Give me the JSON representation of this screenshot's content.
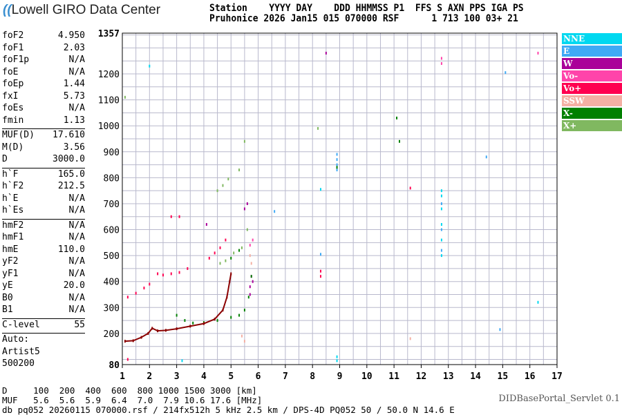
{
  "header": {
    "logo": "Lowell GIRO Data Center",
    "line1": "Station    YYYY DAY    DDD HHMMSS P1  FFS S AXN PPS IGA PS",
    "line2": "Pruhonice 2026 Jan15 015 070000 RSF      1 713 100 03+ 21"
  },
  "params": [
    [
      {
        "k": "foF2",
        "v": "4.950"
      },
      {
        "k": "foF1",
        "v": "2.03"
      },
      {
        "k": "foF1p",
        "v": "N/A"
      },
      {
        "k": "foE",
        "v": "N/A"
      },
      {
        "k": "foEp",
        "v": "1.44"
      },
      {
        "k": "fxI",
        "v": "5.73"
      },
      {
        "k": "foEs",
        "v": "N/A"
      },
      {
        "k": "fmin",
        "v": "1.13"
      }
    ],
    [
      {
        "k": "MUF(D)",
        "v": "17.610"
      },
      {
        "k": "M(D)",
        "v": "3.56"
      },
      {
        "k": "D",
        "v": "3000.0"
      }
    ],
    [
      {
        "k": "h`F",
        "v": "165.0"
      },
      {
        "k": "h`F2",
        "v": "212.5"
      },
      {
        "k": "h`E",
        "v": "N/A"
      },
      {
        "k": "h`Es",
        "v": "N/A"
      }
    ],
    [
      {
        "k": "hmF2",
        "v": "N/A"
      },
      {
        "k": "hmF1",
        "v": "N/A"
      },
      {
        "k": "hmE",
        "v": "110.0"
      },
      {
        "k": "yF2",
        "v": "N/A"
      },
      {
        "k": "yF1",
        "v": "N/A"
      },
      {
        "k": "yE",
        "v": "20.0"
      },
      {
        "k": "B0",
        "v": "N/A"
      },
      {
        "k": "B1",
        "v": "N/A"
      }
    ],
    [
      {
        "k": "C-level",
        "v": "55"
      }
    ]
  ],
  "auto": {
    "label": "Auto:",
    "artist": "Artist5",
    "version": "500200"
  },
  "footer": {
    "d_row": "D     100  200  400  600  800 1000 1500 3000 [km]",
    "muf_row": "MUF   5.6  5.6  5.9  6.4  7.0  7.9 10.6 17.6 [MHz]",
    "info": "db pq052 20260115 070000.rsf / 214fx512h 5 kHz 2.5 km / DPS-4D PQ052 50 / 50.0 N 14.6 E",
    "servlet": "DIDBasePortal_Servlet 0.1"
  },
  "chart_data": {
    "type": "scatter",
    "xlim": [
      1,
      17
    ],
    "ylim": [
      80,
      1357
    ],
    "xticks": [
      1,
      2,
      3,
      4,
      5,
      6,
      7,
      8,
      9,
      10,
      11,
      12,
      13,
      14,
      15,
      16,
      17
    ],
    "yticks": [
      80,
      200,
      300,
      400,
      500,
      600,
      700,
      800,
      900,
      1000,
      1100,
      1200,
      1357
    ],
    "grid": true,
    "legend_placement": "right",
    "series": [
      {
        "name": "NNE",
        "color": "#00d8f0",
        "points": [
          [
            8.9,
            110
          ],
          [
            8.9,
            95
          ],
          [
            12.75,
            500
          ],
          [
            12.75,
            560
          ],
          [
            12.75,
            620
          ],
          [
            12.75,
            680
          ],
          [
            12.75,
            730
          ],
          [
            12.75,
            750
          ],
          [
            16.3,
            320
          ],
          [
            8.3,
            755
          ],
          [
            3.2,
            95
          ],
          [
            2.0,
            1230
          ]
        ]
      },
      {
        "name": "E",
        "color": "#3fa9f5",
        "points": [
          [
            8.9,
            830
          ],
          [
            8.9,
            850
          ],
          [
            8.9,
            870
          ],
          [
            8.9,
            890
          ],
          [
            12.75,
            520
          ],
          [
            12.75,
            600
          ],
          [
            12.75,
            700
          ],
          [
            14.4,
            880
          ],
          [
            15.1,
            1205
          ],
          [
            8.3,
            505
          ],
          [
            6.6,
            670
          ],
          [
            14.9,
            215
          ]
        ]
      },
      {
        "name": "W",
        "color": "#aa0099",
        "points": [
          [
            5.7,
            350
          ],
          [
            5.7,
            380
          ],
          [
            5.75,
            420
          ],
          [
            5.8,
            400
          ],
          [
            4.1,
            620
          ],
          [
            8.5,
            1280
          ],
          [
            5.5,
            680
          ],
          [
            5.6,
            700
          ]
        ]
      },
      {
        "name": "Vo-",
        "color": "#ff44aa",
        "points": [
          [
            12.75,
            1240
          ],
          [
            12.75,
            1260
          ],
          [
            16.3,
            1280
          ],
          [
            5.8,
            560
          ],
          [
            5.7,
            540
          ]
        ]
      },
      {
        "name": "Vo+",
        "color": "#ff0050",
        "points": [
          [
            1.2,
            340
          ],
          [
            1.5,
            355
          ],
          [
            1.8,
            375
          ],
          [
            2.0,
            390
          ],
          [
            2.3,
            430
          ],
          [
            2.5,
            425
          ],
          [
            2.8,
            430
          ],
          [
            3.1,
            435
          ],
          [
            3.4,
            450
          ],
          [
            4.2,
            490
          ],
          [
            4.4,
            510
          ],
          [
            4.6,
            530
          ],
          [
            4.8,
            560
          ],
          [
            8.3,
            420
          ],
          [
            8.3,
            440
          ],
          [
            2.8,
            650
          ],
          [
            3.1,
            650
          ],
          [
            11.6,
            760
          ],
          [
            1.2,
            100
          ]
        ]
      },
      {
        "name": "SSW",
        "color": "#f4b0a4",
        "points": [
          [
            5.4,
            190
          ],
          [
            5.5,
            170
          ],
          [
            5.7,
            500
          ],
          [
            5.75,
            470
          ],
          [
            11.6,
            180
          ]
        ]
      },
      {
        "name": "X-",
        "color": "#008000",
        "points": [
          [
            3.0,
            270
          ],
          [
            3.3,
            250
          ],
          [
            3.6,
            240
          ],
          [
            4.0,
            242
          ],
          [
            4.5,
            250
          ],
          [
            5.0,
            262
          ],
          [
            5.3,
            270
          ],
          [
            5.5,
            290
          ],
          [
            5.65,
            340
          ],
          [
            5.75,
            420
          ],
          [
            11.1,
            1030
          ],
          [
            11.2,
            940
          ],
          [
            8.9,
            840
          ],
          [
            5.0,
            490
          ],
          [
            5.3,
            520
          ]
        ]
      },
      {
        "name": "X+",
        "color": "#80b860",
        "points": [
          [
            4.5,
            750
          ],
          [
            4.7,
            770
          ],
          [
            4.9,
            795
          ],
          [
            5.3,
            830
          ],
          [
            5.5,
            940
          ],
          [
            4.6,
            470
          ],
          [
            4.8,
            480
          ],
          [
            5.1,
            510
          ],
          [
            5.4,
            530
          ],
          [
            5.6,
            600
          ],
          [
            8.2,
            990
          ],
          [
            1.1,
            1110
          ]
        ]
      },
      {
        "name": "",
        "color": "#8b0000",
        "points": [
          [
            1.1,
            170
          ],
          [
            1.4,
            172
          ],
          [
            1.7,
            185
          ],
          [
            1.95,
            200
          ],
          [
            2.1,
            220
          ],
          [
            2.3,
            210
          ],
          [
            2.6,
            212
          ],
          [
            3.0,
            218
          ],
          [
            3.5,
            228
          ],
          [
            4.0,
            238
          ],
          [
            4.4,
            255
          ],
          [
            4.7,
            290
          ],
          [
            4.85,
            340
          ],
          [
            4.95,
            400
          ],
          [
            5.0,
            430
          ]
        ]
      }
    ]
  }
}
